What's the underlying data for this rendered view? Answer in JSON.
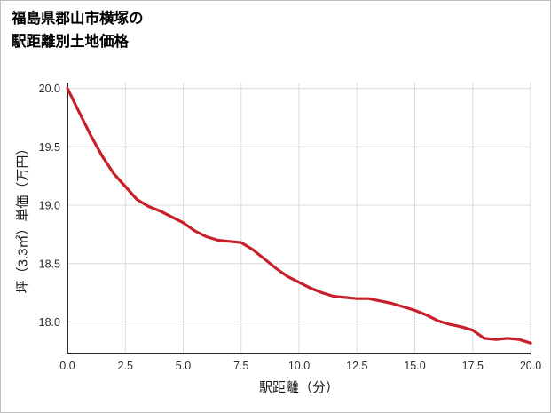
{
  "title": {
    "line1": "福島県郡山市横塚の",
    "line2": "駅距離別土地価格"
  },
  "chart_data": {
    "type": "line",
    "title": "福島県郡山市横塚の駅距離別土地価格",
    "xlabel": "駅距離（分）",
    "ylabel": "坪（3.3㎡）単価（万円）",
    "x": [
      0,
      0.5,
      1,
      1.5,
      2,
      2.5,
      3,
      3.5,
      4,
      4.5,
      5,
      5.5,
      6,
      6.5,
      7,
      7.5,
      8,
      8.5,
      9,
      9.5,
      10,
      10.5,
      11,
      11.5,
      12,
      12.5,
      13,
      13.5,
      14,
      14.5,
      15,
      15.5,
      16,
      16.5,
      17,
      17.5,
      18,
      18.5,
      19,
      19.5,
      20
    ],
    "values": [
      20.0,
      19.8,
      19.6,
      19.42,
      19.27,
      19.16,
      19.05,
      18.99,
      18.95,
      18.9,
      18.85,
      18.78,
      18.73,
      18.7,
      18.69,
      18.68,
      18.62,
      18.54,
      18.46,
      18.39,
      18.34,
      18.29,
      18.25,
      18.22,
      18.21,
      18.2,
      18.2,
      18.18,
      18.16,
      18.13,
      18.1,
      18.06,
      18.01,
      17.98,
      17.96,
      17.93,
      17.86,
      17.85,
      17.86,
      17.85,
      17.82
    ],
    "xlim": [
      0,
      20
    ],
    "ylim": [
      17.73,
      20.05
    ],
    "x_ticks": [
      0,
      2.5,
      5,
      7.5,
      10,
      12.5,
      15,
      17.5,
      20
    ],
    "y_ticks": [
      18,
      18.5,
      19,
      19.5,
      20
    ],
    "line_color": "#c8202a",
    "line_width": 3.2,
    "grid": true,
    "grid_color": "#dadada",
    "axis_color": "#2a2a2a",
    "legend": "none"
  }
}
